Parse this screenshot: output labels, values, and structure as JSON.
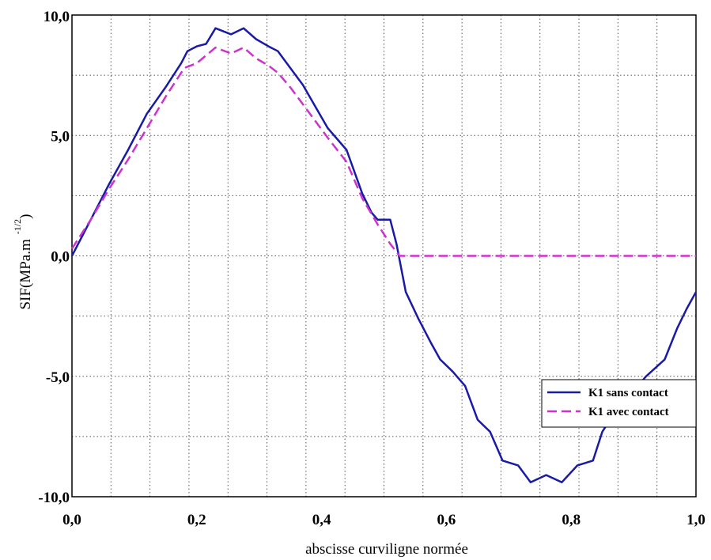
{
  "chart_data": {
    "type": "line",
    "xlabel": "abscisse curviligne normée",
    "ylabel": {
      "main": "SIF(MPa.m",
      "superscript": "-1/2",
      "close": ")"
    },
    "xlim": [
      0,
      1
    ],
    "ylim": [
      -10,
      10
    ],
    "x_ticks": [
      "0,0",
      "0,2",
      "0,4",
      "0,6",
      "0,8",
      "1,0"
    ],
    "x_tick_values": [
      0,
      0.2,
      0.4,
      0.6,
      0.8,
      1.0
    ],
    "y_ticks": [
      "10,0",
      "5,0",
      "0,0",
      "-5,0",
      "-10,0"
    ],
    "y_tick_values": [
      10,
      5,
      0,
      -5,
      -10
    ],
    "grid": true,
    "legend_position": "lower-right",
    "series": [
      {
        "name": "K1 sans contact",
        "color": "#1a1aa6",
        "dash": "solid",
        "points": [
          [
            0.0,
            0.0
          ],
          [
            0.03,
            1.5
          ],
          [
            0.06,
            3.0
          ],
          [
            0.09,
            4.4
          ],
          [
            0.12,
            5.9
          ],
          [
            0.15,
            7.0
          ],
          [
            0.175,
            8.0
          ],
          [
            0.185,
            8.5
          ],
          [
            0.2,
            8.7
          ],
          [
            0.215,
            8.8
          ],
          [
            0.23,
            9.45
          ],
          [
            0.255,
            9.2
          ],
          [
            0.275,
            9.45
          ],
          [
            0.295,
            9.0
          ],
          [
            0.315,
            8.7
          ],
          [
            0.33,
            8.5
          ],
          [
            0.35,
            7.8
          ],
          [
            0.37,
            7.1
          ],
          [
            0.39,
            6.2
          ],
          [
            0.41,
            5.3
          ],
          [
            0.44,
            4.4
          ],
          [
            0.465,
            2.6
          ],
          [
            0.48,
            1.8
          ],
          [
            0.49,
            1.5
          ],
          [
            0.5,
            1.5
          ],
          [
            0.51,
            1.5
          ],
          [
            0.52,
            0.5
          ],
          [
            0.535,
            -1.5
          ],
          [
            0.555,
            -2.6
          ],
          [
            0.575,
            -3.6
          ],
          [
            0.59,
            -4.3
          ],
          [
            0.61,
            -4.8
          ],
          [
            0.63,
            -5.4
          ],
          [
            0.65,
            -6.8
          ],
          [
            0.67,
            -7.3
          ],
          [
            0.69,
            -8.5
          ],
          [
            0.715,
            -8.7
          ],
          [
            0.735,
            -9.4
          ],
          [
            0.76,
            -9.1
          ],
          [
            0.785,
            -9.4
          ],
          [
            0.81,
            -8.7
          ],
          [
            0.835,
            -8.5
          ],
          [
            0.85,
            -7.3
          ],
          [
            0.865,
            -6.7
          ],
          [
            0.88,
            -6.4
          ],
          [
            0.9,
            -5.6
          ],
          [
            0.92,
            -5.0
          ],
          [
            0.95,
            -4.3
          ],
          [
            0.97,
            -3.0
          ],
          [
            0.985,
            -2.2
          ],
          [
            1.0,
            -1.5
          ]
        ]
      },
      {
        "name": "K1 avec contact",
        "color": "#cc33cc",
        "dash": "dashed",
        "points": [
          [
            0.0,
            0.3
          ],
          [
            0.03,
            1.5
          ],
          [
            0.06,
            2.8
          ],
          [
            0.09,
            4.0
          ],
          [
            0.12,
            5.3
          ],
          [
            0.15,
            6.6
          ],
          [
            0.18,
            7.8
          ],
          [
            0.2,
            8.0
          ],
          [
            0.23,
            8.65
          ],
          [
            0.255,
            8.4
          ],
          [
            0.275,
            8.65
          ],
          [
            0.295,
            8.2
          ],
          [
            0.315,
            7.9
          ],
          [
            0.33,
            7.6
          ],
          [
            0.35,
            7.0
          ],
          [
            0.37,
            6.3
          ],
          [
            0.39,
            5.6
          ],
          [
            0.41,
            4.9
          ],
          [
            0.44,
            3.9
          ],
          [
            0.465,
            2.4
          ],
          [
            0.49,
            1.3
          ],
          [
            0.51,
            0.5
          ],
          [
            0.525,
            0.0
          ],
          [
            0.6,
            0.0
          ],
          [
            0.8,
            0.0
          ],
          [
            1.0,
            0.0
          ]
        ]
      }
    ]
  }
}
